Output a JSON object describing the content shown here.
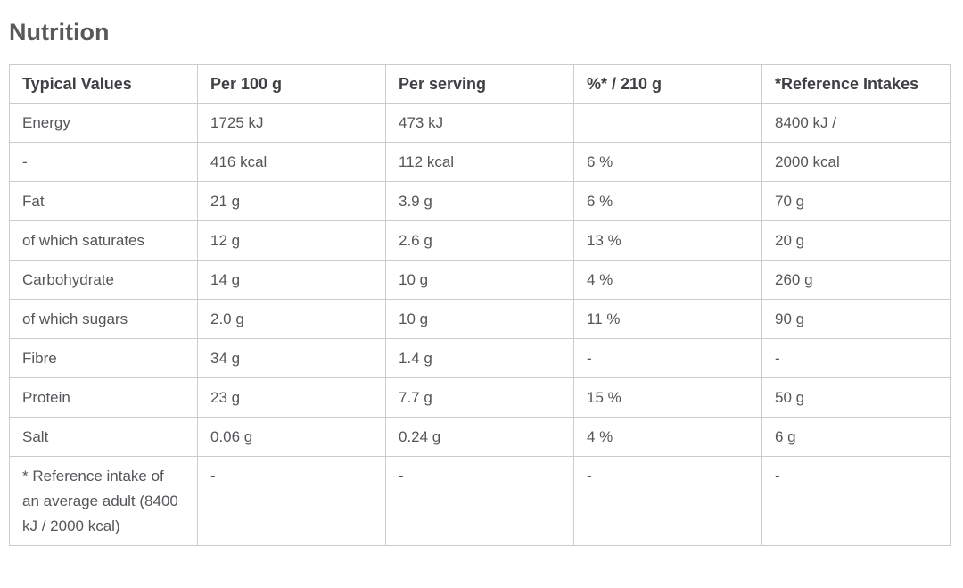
{
  "page": {
    "title": "Nutrition"
  },
  "colors": {
    "title_text": "#58595b",
    "header_text": "#3f4043",
    "cell_text": "#55565a",
    "border": "#cccccc",
    "background": "#ffffff"
  },
  "table": {
    "columns": [
      "Typical Values",
      "Per 100 g",
      "Per serving",
      "%* / 210 g",
      "*Reference Intakes"
    ],
    "rows": [
      [
        "Energy",
        "1725 kJ",
        "473 kJ",
        "",
        "8400 kJ /"
      ],
      [
        "-",
        "416 kcal",
        "112 kcal",
        "6 %",
        "2000 kcal"
      ],
      [
        "Fat",
        "21 g",
        "3.9 g",
        "6 %",
        "70 g"
      ],
      [
        "of which saturates",
        "12 g",
        "2.6 g",
        "13 %",
        "20 g"
      ],
      [
        "Carbohydrate",
        "14 g",
        "10 g",
        "4 %",
        "260 g"
      ],
      [
        "of which sugars",
        "2.0 g",
        "10 g",
        "11 %",
        "90 g"
      ],
      [
        "Fibre",
        "34 g",
        "1.4 g",
        "-",
        "-"
      ],
      [
        "Protein",
        "23 g",
        "7.7 g",
        "15 %",
        "50 g"
      ],
      [
        "Salt",
        "0.06 g",
        "0.24 g",
        "4 %",
        "6 g"
      ],
      [
        "* Reference intake of an average adult (8400 kJ / 2000 kcal)",
        "-",
        "-",
        "-",
        "-"
      ]
    ]
  }
}
